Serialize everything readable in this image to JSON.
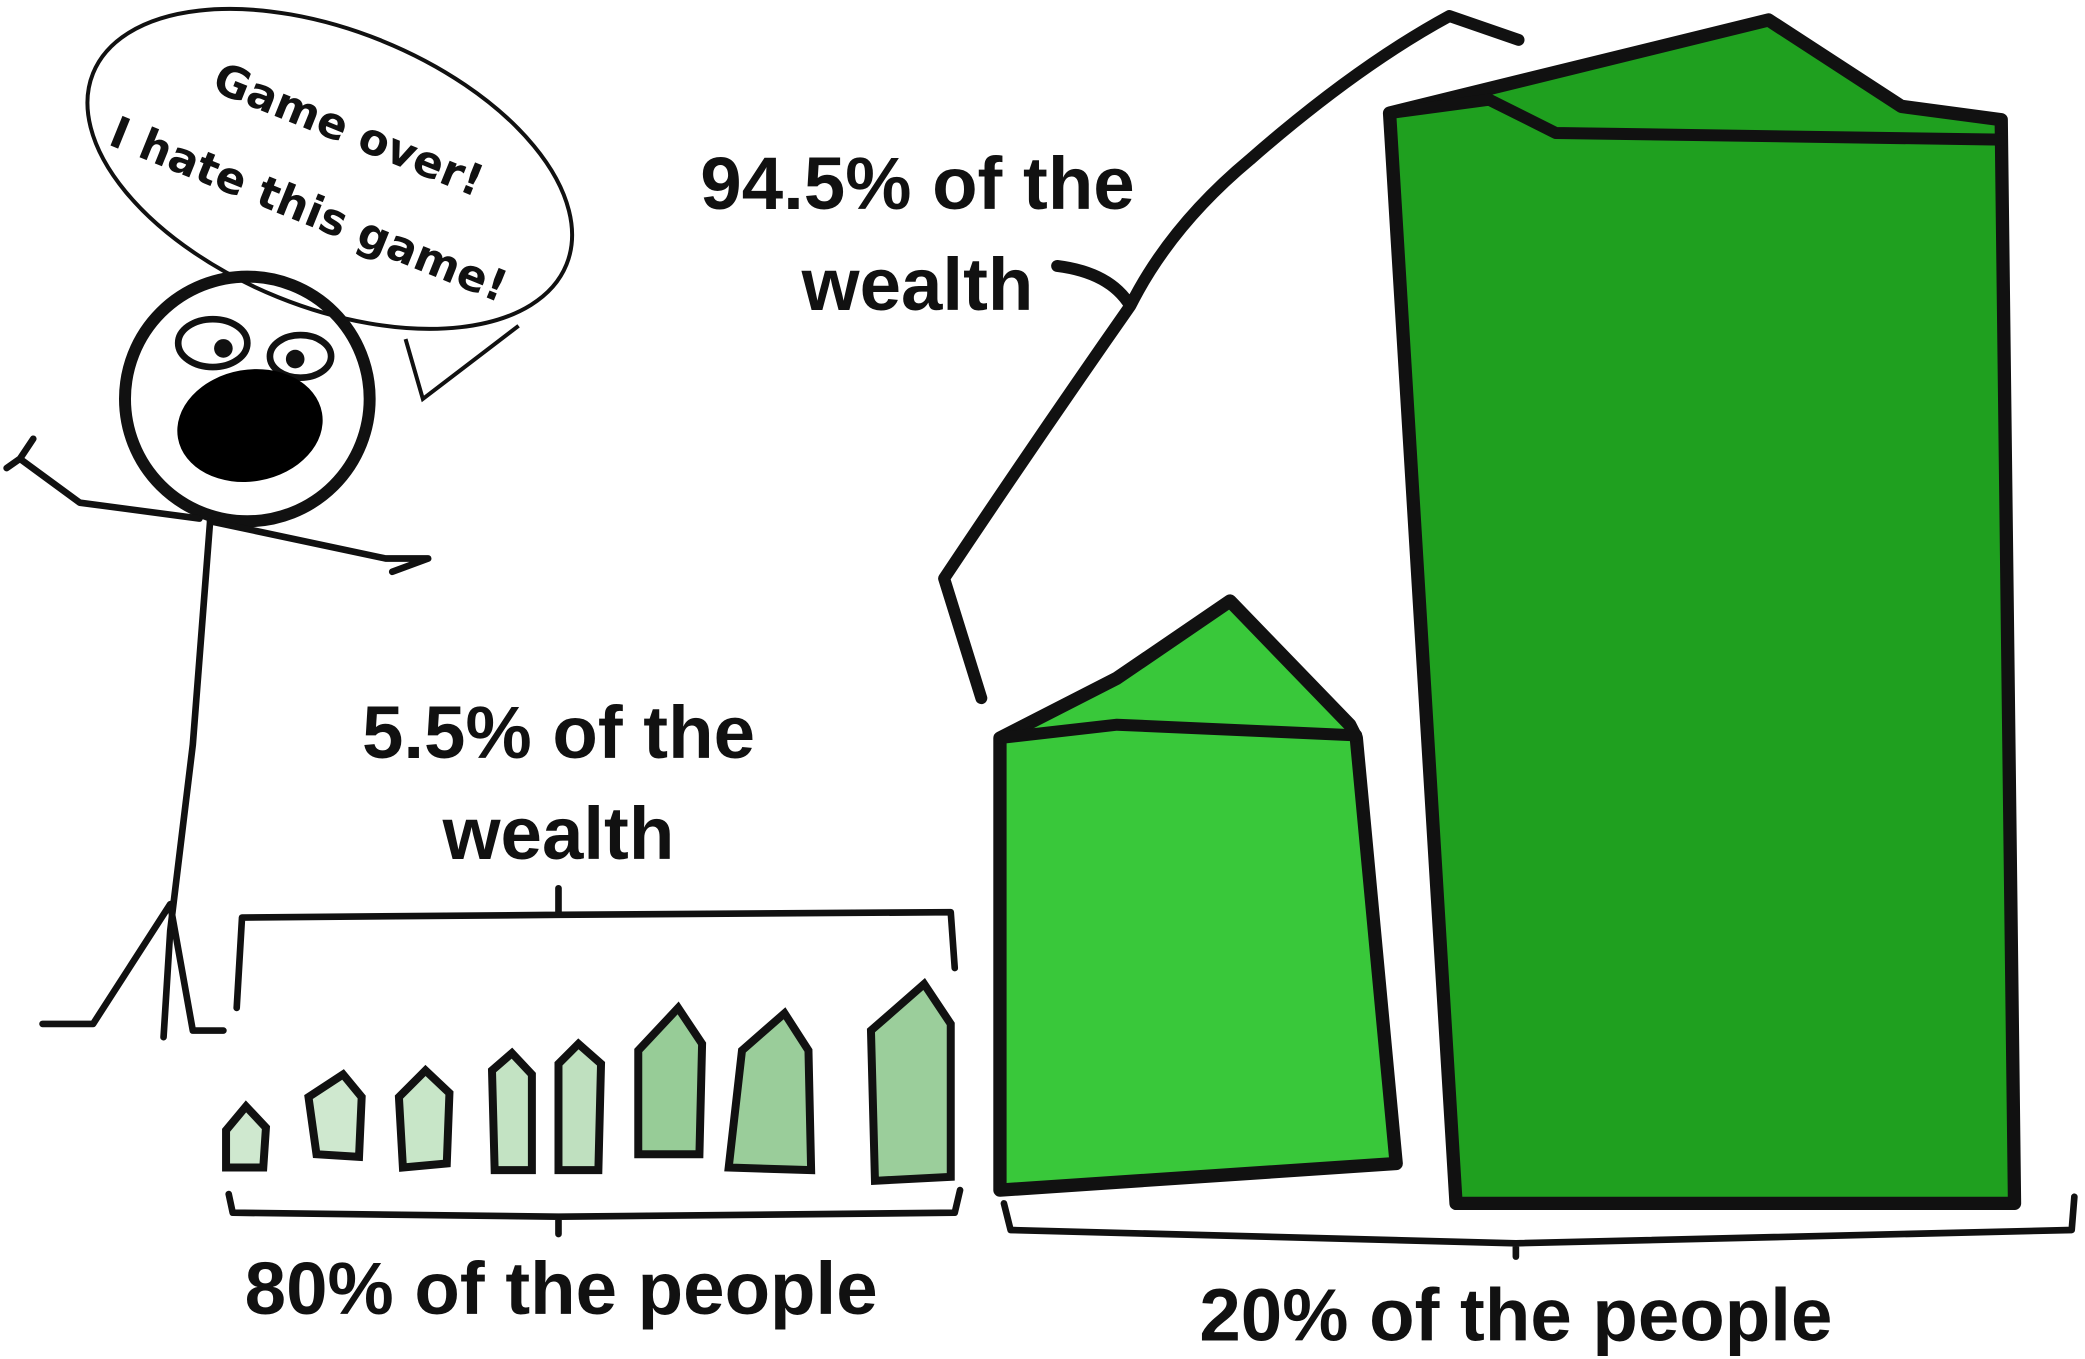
{
  "speech": {
    "lines": [
      "Game over!",
      "I hate this game!"
    ]
  },
  "labels": {
    "top_wealth": [
      "94.5% of the",
      "wealth"
    ],
    "bottom_wealth": [
      "5.5% of the",
      "wealth"
    ],
    "bottom_people": "80% of the people",
    "top_people": "20% of the people"
  }
}
